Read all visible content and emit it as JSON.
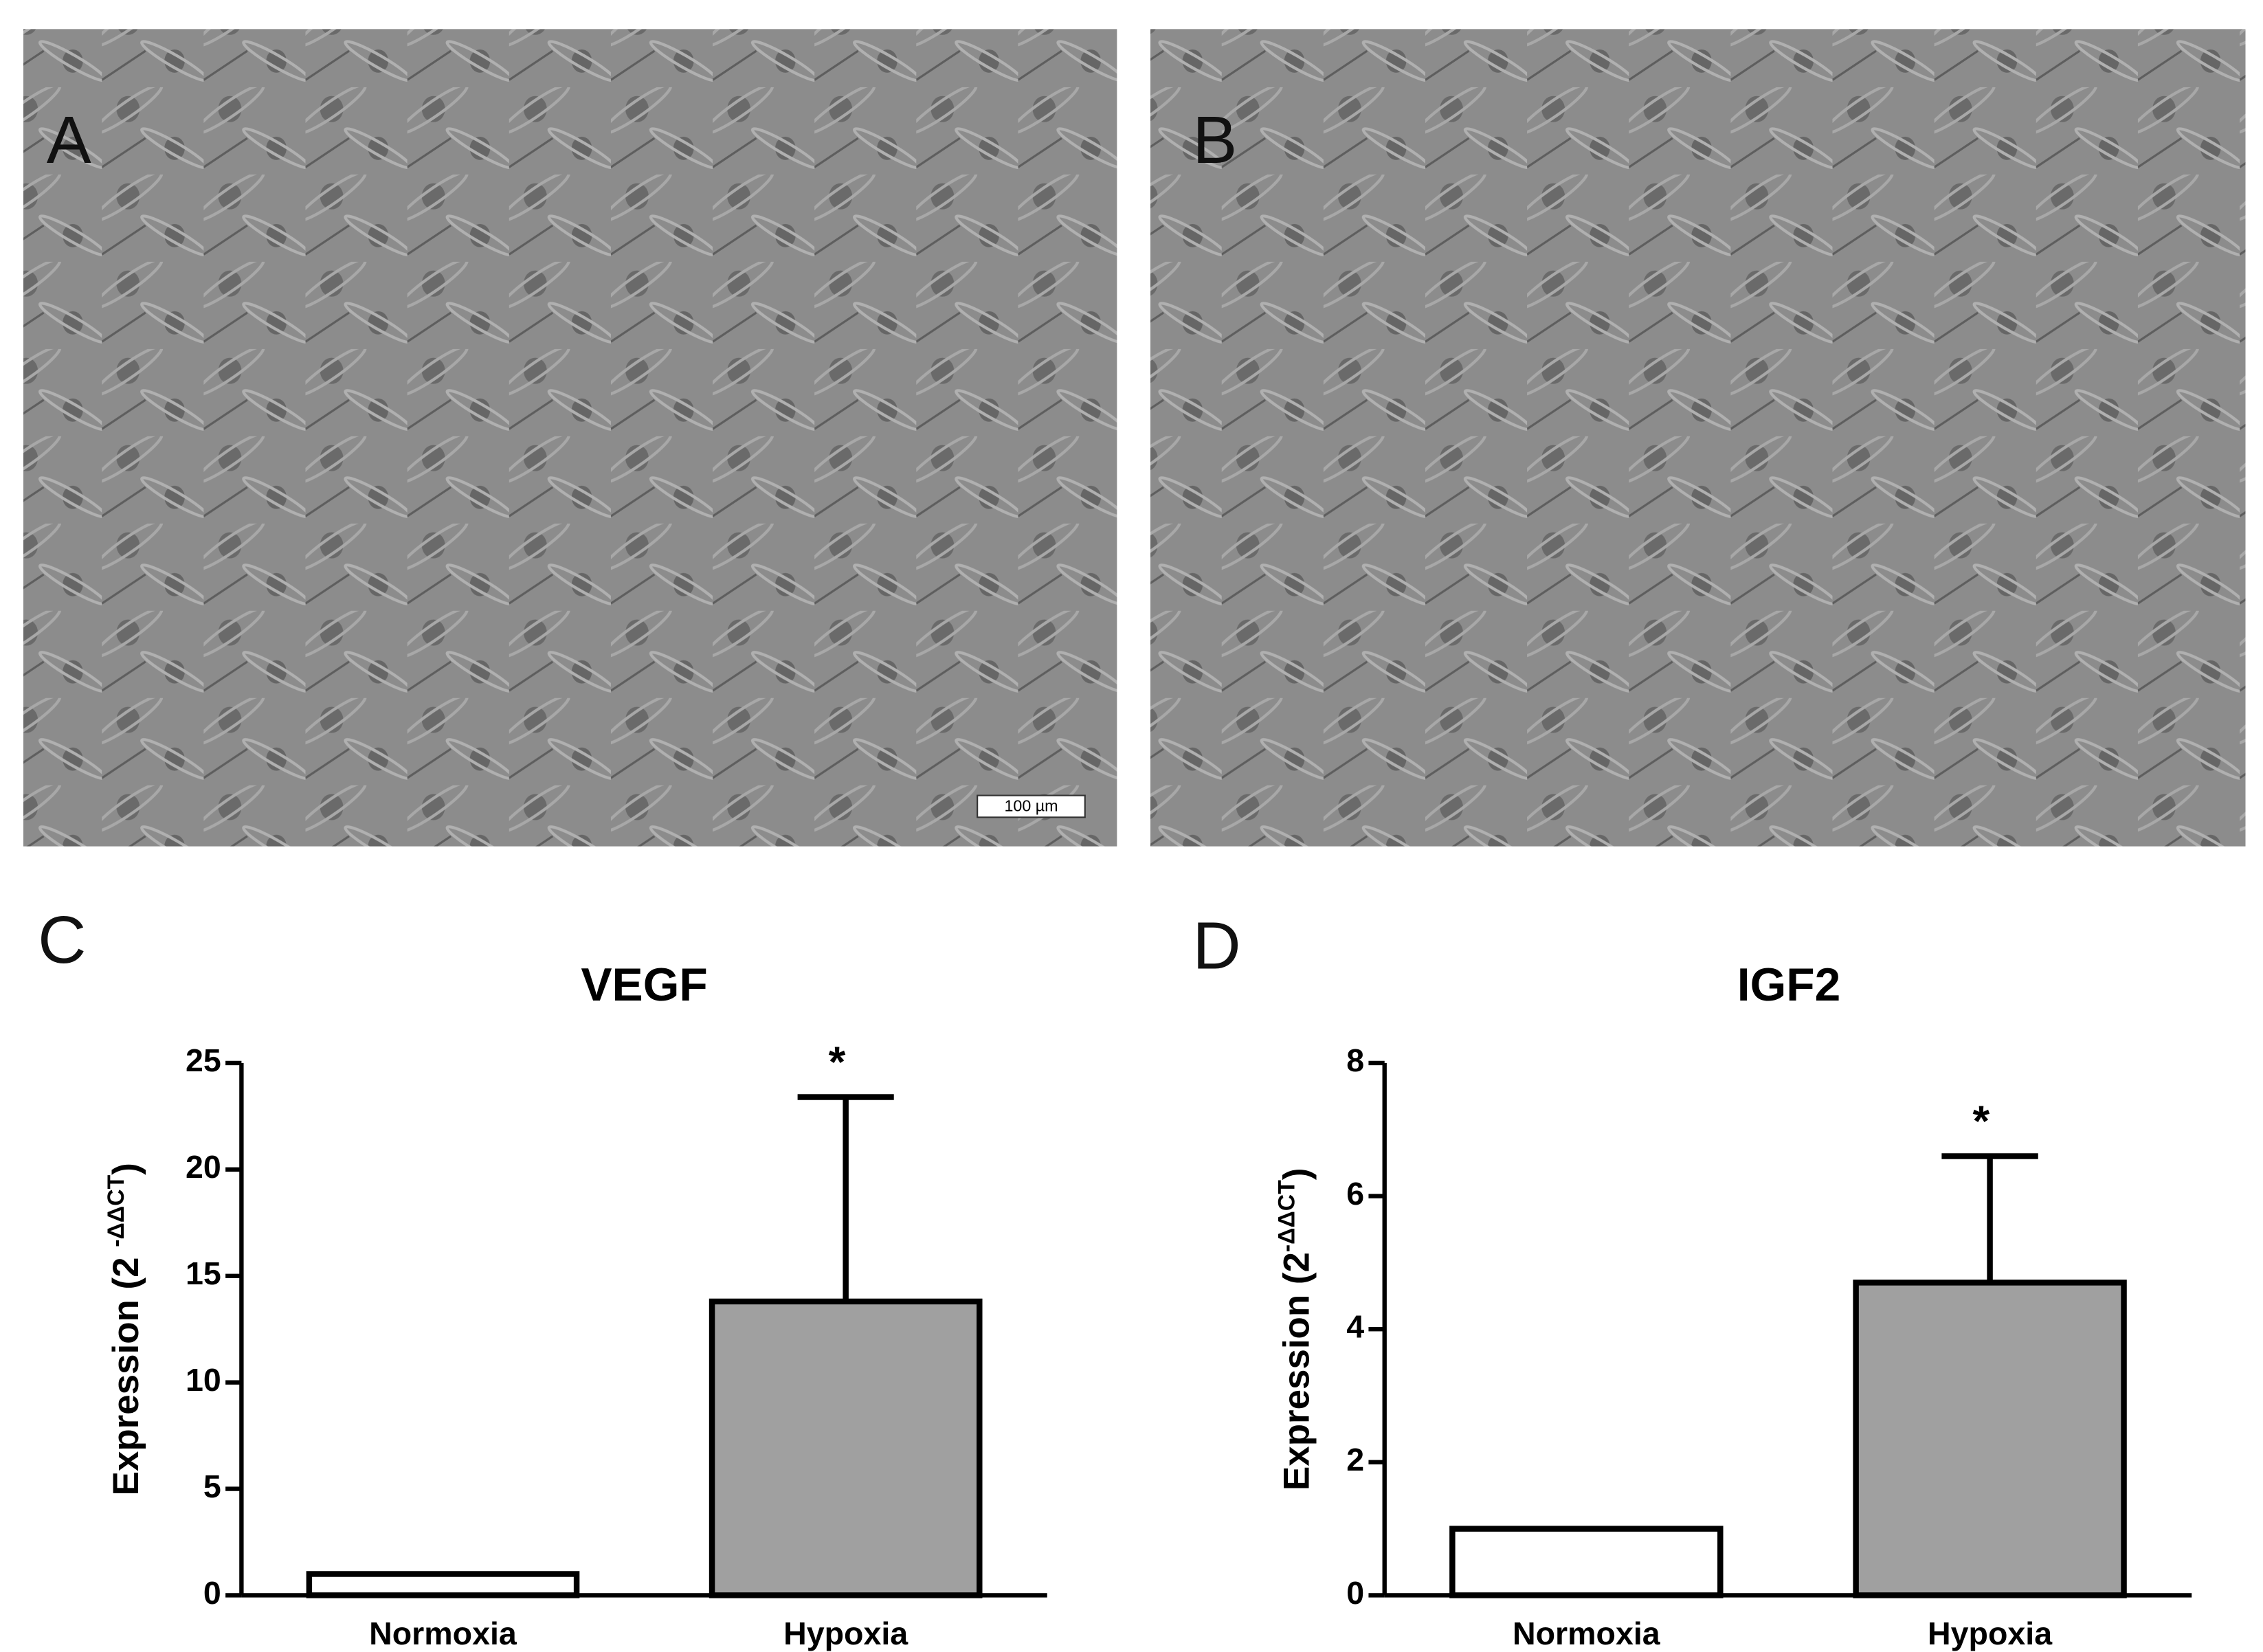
{
  "panel_labels": [
    "A",
    "B",
    "C",
    "D"
  ],
  "scale_bar": "100 µm",
  "chart_data": [
    {
      "type": "bar",
      "title": "VEGF",
      "ylabel": [
        "Expression (2 ",
        "-ΔΔCT",
        ")"
      ],
      "categories": [
        "Normoxia",
        "Hypoxia"
      ],
      "values": [
        1,
        13.8
      ],
      "errors": [
        null,
        9.6
      ],
      "colors": [
        "#ffffff",
        "#a0a0a0"
      ],
      "annotations": [
        null,
        "*"
      ],
      "ylim": [
        0,
        25
      ],
      "yticks": [
        0,
        5,
        10,
        15,
        20,
        25
      ]
    },
    {
      "type": "bar",
      "title": "IGF2",
      "ylabel": [
        "Expression (2",
        "-ΔΔCT",
        ")"
      ],
      "categories": [
        "Normoxia",
        "Hypoxia"
      ],
      "values": [
        1,
        4.7
      ],
      "errors": [
        null,
        1.9
      ],
      "colors": [
        "#ffffff",
        "#a0a0a0"
      ],
      "annotations": [
        null,
        "*"
      ],
      "ylim": [
        0,
        8
      ],
      "yticks": [
        0,
        2,
        4,
        6,
        8
      ]
    }
  ]
}
